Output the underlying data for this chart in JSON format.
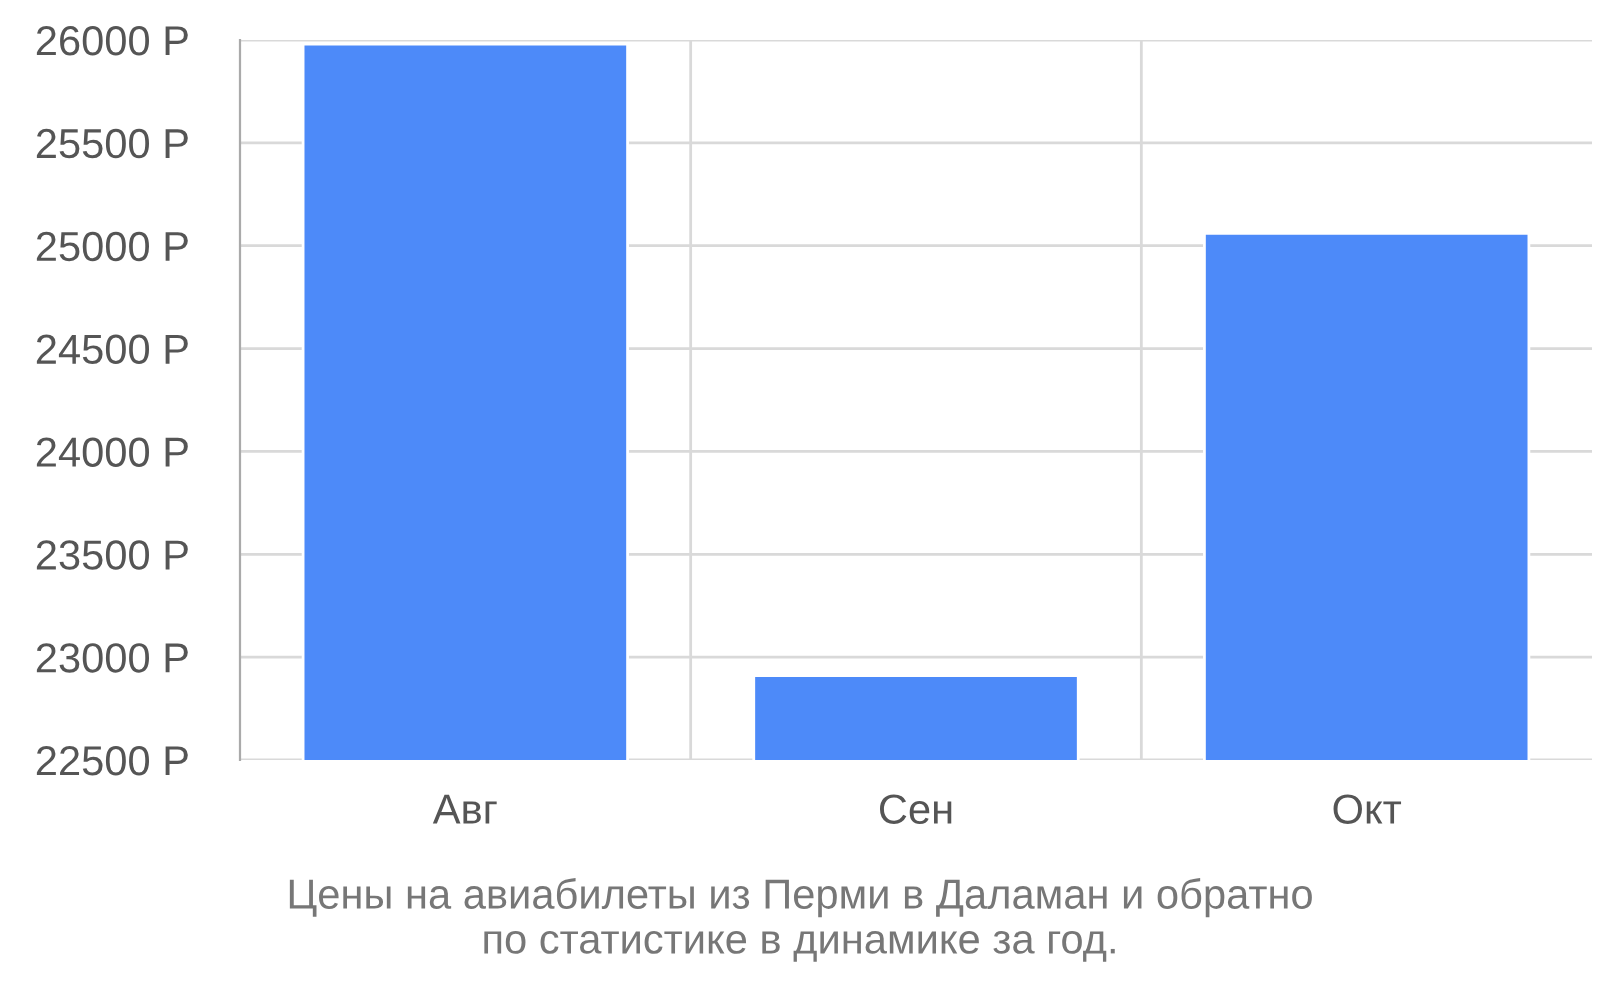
{
  "chart_data": {
    "type": "bar",
    "categories": [
      "Авг",
      "Сен",
      "Окт"
    ],
    "values": [
      25980,
      22910,
      25060
    ],
    "color": "#4d8af9",
    "ylim": [
      22500,
      26000
    ],
    "yticks": [
      {
        "value": 22500,
        "label": "22500 Р"
      },
      {
        "value": 23000,
        "label": "23000 Р"
      },
      {
        "value": 23500,
        "label": "23500 Р"
      },
      {
        "value": 24000,
        "label": "24000 Р"
      },
      {
        "value": 24500,
        "label": "24500 Р"
      },
      {
        "value": 25000,
        "label": "25000 Р"
      },
      {
        "value": 25500,
        "label": "25500 Р"
      },
      {
        "value": 26000,
        "label": "26000 Р"
      }
    ],
    "grid": true,
    "annotations": [
      "Цены на авиабилеты из Перми в Даламан и обратно\nпо статистике в динамике за год."
    ]
  }
}
